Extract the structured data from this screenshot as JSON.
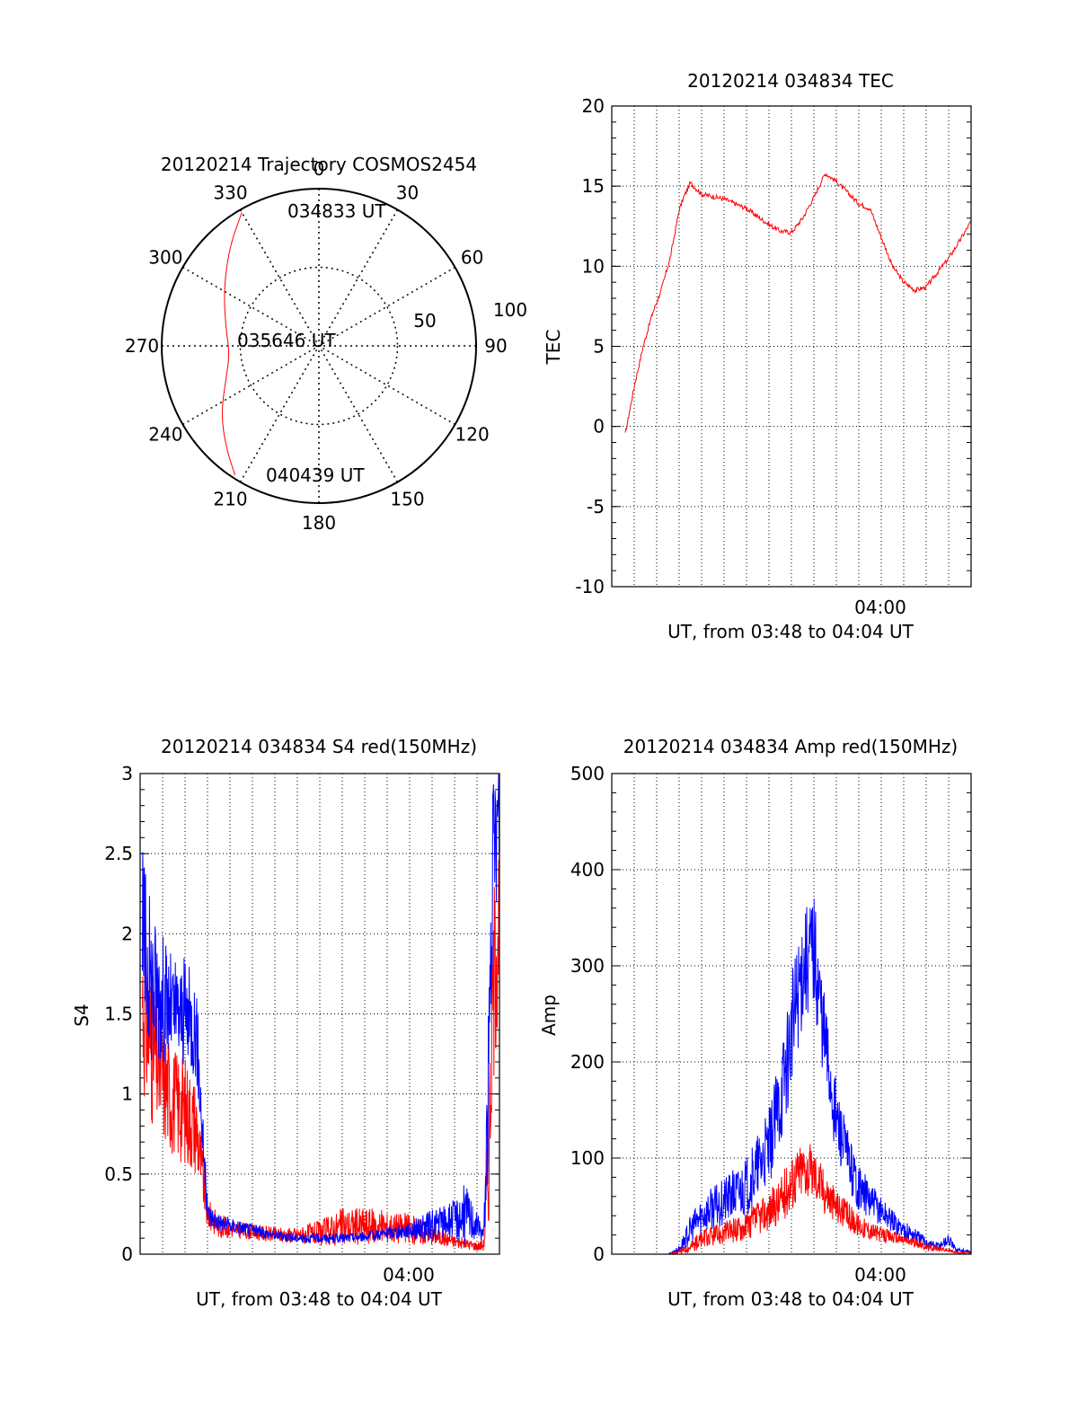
{
  "chart_data": [
    {
      "type": "polar",
      "title": "20120214 Trajectory COSMOS2454",
      "azimuth_labels": [
        "0",
        "30",
        "60",
        "90",
        "120",
        "150",
        "180",
        "210",
        "240",
        "270",
        "300",
        "330"
      ],
      "radial_labels": [
        "50",
        "100"
      ],
      "point_labels": {
        "start": "034833 UT",
        "mid": "035646 UT",
        "end": "040439 UT"
      },
      "trajectory": [
        {
          "az": 330,
          "r": 98
        },
        {
          "az": 318,
          "r": 85
        },
        {
          "az": 300,
          "r": 70
        },
        {
          "az": 280,
          "r": 60
        },
        {
          "az": 265,
          "r": 57
        },
        {
          "az": 250,
          "r": 63
        },
        {
          "az": 235,
          "r": 76
        },
        {
          "az": 222,
          "r": 88
        },
        {
          "az": 213,
          "r": 98
        }
      ],
      "series_color": "#ff0000"
    },
    {
      "type": "line",
      "title": "20120214 034834 TEC",
      "ylabel": "TEC",
      "xlabel": "UT, from 03:48 to 04:04 UT",
      "xtick_label": "04:00",
      "ylim": [
        -10,
        20
      ],
      "yticks": [
        "-10",
        "-5",
        "0",
        "5",
        "10",
        "15",
        "20"
      ],
      "xlim_minutes": [
        0,
        16
      ],
      "series": [
        {
          "color": "#ff0000",
          "x": [
            0.6,
            1.0,
            1.4,
            1.8,
            2.2,
            2.6,
            3.0,
            3.2,
            3.5,
            4.0,
            5.0,
            6.0,
            7.0,
            7.5,
            8.0,
            8.5,
            9.0,
            9.5,
            10.0,
            10.5,
            11.0,
            11.5,
            12.0,
            12.5,
            13.0,
            13.5,
            14.0,
            14.5,
            15.0,
            15.5,
            16.0
          ],
          "y": [
            -0.5,
            2.5,
            5.0,
            7.0,
            8.5,
            10.5,
            13.5,
            14.3,
            15.2,
            14.5,
            14.2,
            13.6,
            12.6,
            12.2,
            12.1,
            13.0,
            14.3,
            15.8,
            15.3,
            14.6,
            13.9,
            13.6,
            11.8,
            10.0,
            9.0,
            8.5,
            8.7,
            9.6,
            10.5,
            11.6,
            12.8
          ]
        }
      ]
    },
    {
      "type": "line",
      "title": "20120214 034834 S4 red(150MHz)",
      "ylabel": "S4",
      "xlabel": "UT, from 03:48 to 04:04 UT",
      "xtick_label": "04:00",
      "ylim": [
        0,
        3
      ],
      "yticks": [
        "0",
        "0.5",
        "1",
        "1.5",
        "2",
        "2.5",
        "3"
      ],
      "xlim_minutes": [
        0,
        16
      ],
      "series": [
        {
          "color": "#ff0000",
          "x": [
            0.1,
            0.5,
            1.0,
            1.5,
            2.0,
            2.5,
            3.0,
            3.5,
            4.0,
            5.0,
            6.0,
            7.0,
            8.0,
            9.0,
            10.0,
            11.0,
            12.0,
            13.0,
            14.0,
            15.0,
            15.3,
            15.5,
            15.7,
            16.0
          ],
          "y": [
            1.6,
            1.3,
            1.1,
            0.95,
            0.9,
            0.8,
            0.25,
            0.18,
            0.16,
            0.14,
            0.12,
            0.12,
            0.13,
            0.17,
            0.18,
            0.17,
            0.16,
            0.12,
            0.08,
            0.05,
            0.06,
            0.5,
            1.6,
            2.2
          ],
          "noise": [
            0.6,
            0.5,
            0.4,
            0.35,
            0.35,
            0.3,
            0.1,
            0.08,
            0.06,
            0.05,
            0.05,
            0.05,
            0.08,
            0.12,
            0.12,
            0.1,
            0.1,
            0.06,
            0.04,
            0.03,
            0.04,
            0.4,
            0.6,
            0.6
          ]
        },
        {
          "color": "#0000ff",
          "x": [
            0.1,
            0.5,
            1.0,
            1.5,
            2.0,
            2.5,
            3.0,
            3.5,
            4.0,
            5.0,
            6.0,
            7.0,
            8.0,
            9.0,
            10.0,
            11.0,
            12.0,
            13.0,
            14.0,
            14.5,
            15.0,
            15.3,
            15.5,
            15.7,
            16.0
          ],
          "y": [
            2.0,
            1.7,
            1.6,
            1.5,
            1.5,
            1.4,
            0.25,
            0.2,
            0.18,
            0.15,
            0.12,
            0.1,
            0.1,
            0.1,
            0.11,
            0.13,
            0.15,
            0.18,
            0.22,
            0.25,
            0.18,
            0.12,
            1.0,
            2.4,
            2.8
          ],
          "noise": [
            0.6,
            0.5,
            0.4,
            0.35,
            0.35,
            0.3,
            0.08,
            0.06,
            0.05,
            0.04,
            0.03,
            0.03,
            0.03,
            0.03,
            0.03,
            0.04,
            0.05,
            0.1,
            0.12,
            0.2,
            0.08,
            0.05,
            0.5,
            0.5,
            0.4
          ]
        }
      ]
    },
    {
      "type": "line",
      "title": "20120214 034834 Amp red(150MHz)",
      "ylabel": "Amp",
      "xlabel": "UT, from 03:48 to 04:04 UT",
      "xtick_label": "04:00",
      "ylim": [
        0,
        500
      ],
      "yticks": [
        "0",
        "100",
        "200",
        "300",
        "400",
        "500"
      ],
      "xlim_minutes": [
        0,
        16
      ],
      "series": [
        {
          "color": "#0000ff",
          "x": [
            0.5,
            1.5,
            2.5,
            3.0,
            3.5,
            4.0,
            5.0,
            6.0,
            7.0,
            7.5,
            8.0,
            8.5,
            9.0,
            9.5,
            10.0,
            10.5,
            11.0,
            11.5,
            12.0,
            12.5,
            13.0,
            13.5,
            14.0,
            14.5,
            15.0,
            15.3,
            16.0
          ],
          "y": [
            0,
            0,
            0,
            5,
            25,
            40,
            55,
            70,
            110,
            160,
            230,
            300,
            320,
            220,
            140,
            100,
            70,
            55,
            45,
            35,
            25,
            20,
            12,
            8,
            15,
            5,
            2
          ],
          "noise": [
            0,
            0,
            0,
            4,
            15,
            20,
            25,
            30,
            40,
            50,
            60,
            60,
            60,
            50,
            40,
            30,
            25,
            20,
            15,
            12,
            10,
            8,
            6,
            5,
            6,
            3,
            1
          ]
        },
        {
          "color": "#ff0000",
          "x": [
            0.5,
            1.5,
            2.5,
            3.0,
            3.5,
            4.0,
            5.0,
            6.0,
            7.0,
            7.5,
            8.0,
            8.5,
            9.0,
            9.5,
            10.0,
            10.5,
            11.0,
            11.5,
            12.0,
            12.5,
            13.0,
            13.5,
            14.0,
            14.5,
            15.0,
            15.3,
            16.0
          ],
          "y": [
            0,
            0,
            0,
            2,
            8,
            15,
            22,
            30,
            45,
            55,
            75,
            90,
            85,
            65,
            50,
            40,
            30,
            25,
            20,
            18,
            15,
            12,
            8,
            6,
            4,
            2,
            1
          ],
          "noise": [
            0,
            0,
            0,
            2,
            6,
            10,
            12,
            15,
            20,
            25,
            30,
            30,
            28,
            24,
            18,
            15,
            12,
            10,
            8,
            7,
            6,
            5,
            4,
            3,
            2,
            1,
            1
          ]
        }
      ]
    }
  ]
}
